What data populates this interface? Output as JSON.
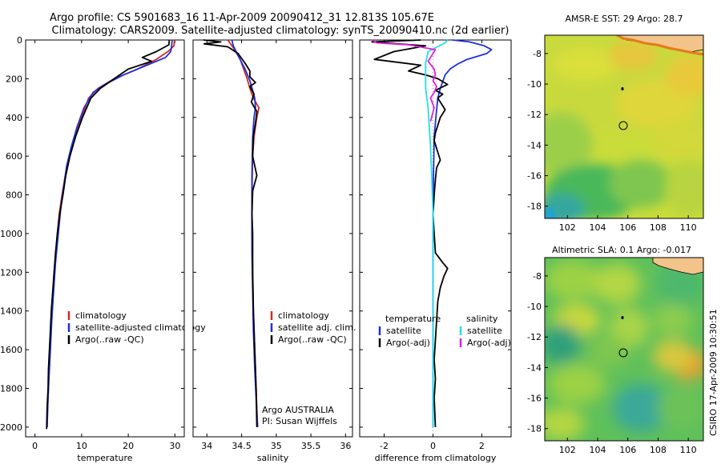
{
  "header": {
    "line1": "Argo profile: CS 5901683_16 11-Apr-2009 20090412_31 12.813S 105.67E",
    "line2": "Climatology: CARS2009. Satellite-adjusted climatology: synTS_20090410.nc (2d earlier)"
  },
  "side_stamp": "CSIRO 17-Apr-2009 10:30:51",
  "colors": {
    "climatology": "#d62a1e",
    "satellite": "#1f2fe0",
    "argo": "#000000",
    "sat_salinity": "#22e0e6",
    "argo_salinity": "#e21ee0"
  },
  "chart_data": [
    {
      "id": "temperature-profile",
      "type": "line",
      "xlabel": "temperature",
      "xlim": [
        -2,
        32
      ],
      "ylim": [
        2050,
        0
      ],
      "xticks": [
        0,
        10,
        20,
        30
      ],
      "yticks": [
        0,
        200,
        400,
        600,
        800,
        1000,
        1200,
        1400,
        1600,
        1800,
        2000
      ],
      "legend": [
        "climatology",
        "satellite-adjusted climatology",
        "Argo(..raw -QC)"
      ],
      "series": [
        {
          "name": "climatology",
          "color": "#d62a1e",
          "points": [
            [
              29.9,
              0
            ],
            [
              29.8,
              30
            ],
            [
              28.5,
              60
            ],
            [
              26,
              100
            ],
            [
              22,
              150
            ],
            [
              17,
              200
            ],
            [
              13.5,
              250
            ],
            [
              11.5,
              300
            ],
            [
              10,
              400
            ],
            [
              8.5,
              500
            ],
            [
              7.3,
              600
            ],
            [
              6.5,
              700
            ],
            [
              5.8,
              800
            ],
            [
              5.2,
              900
            ],
            [
              4.8,
              1000
            ],
            [
              4.5,
              1100
            ],
            [
              4.2,
              1200
            ],
            [
              3.9,
              1300
            ],
            [
              3.6,
              1400
            ],
            [
              3.4,
              1500
            ],
            [
              3.2,
              1600
            ],
            [
              3,
              1700
            ],
            [
              2.9,
              1800
            ],
            [
              2.7,
              1900
            ],
            [
              2.6,
              2000
            ]
          ]
        },
        {
          "name": "satellite-adjusted climatology",
          "color": "#1f2fe0",
          "points": [
            [
              29.4,
              0
            ],
            [
              29.3,
              30
            ],
            [
              29.1,
              60
            ],
            [
              28,
              90
            ],
            [
              24,
              130
            ],
            [
              19,
              180
            ],
            [
              15,
              230
            ],
            [
              12.5,
              270
            ],
            [
              10.5,
              350
            ],
            [
              9,
              450
            ],
            [
              7.8,
              550
            ],
            [
              6.8,
              650
            ],
            [
              6.2,
              750
            ],
            [
              5.6,
              850
            ],
            [
              5,
              1000
            ],
            [
              4.4,
              1150
            ],
            [
              4,
              1300
            ],
            [
              3.6,
              1450
            ],
            [
              3.3,
              1600
            ],
            [
              3,
              1750
            ],
            [
              2.8,
              1850
            ],
            [
              2.6,
              2000
            ]
          ]
        },
        {
          "name": "Argo(..raw -QC)",
          "color": "#000000",
          "points": [
            [
              28.8,
              0
            ],
            [
              28.7,
              25
            ],
            [
              26,
              60
            ],
            [
              23,
              90
            ],
            [
              25,
              110
            ],
            [
              20,
              150
            ],
            [
              17,
              200
            ],
            [
              14,
              250
            ],
            [
              12,
              300
            ],
            [
              10.2,
              400
            ],
            [
              8.7,
              500
            ],
            [
              7.5,
              600
            ],
            [
              6.6,
              700
            ],
            [
              6,
              800
            ],
            [
              5.3,
              900
            ],
            [
              4.8,
              1000
            ],
            [
              4.4,
              1100
            ],
            [
              4.1,
              1200
            ],
            [
              3.8,
              1300
            ],
            [
              3.5,
              1400
            ],
            [
              3.3,
              1500
            ],
            [
              3.1,
              1600
            ],
            [
              2.9,
              1700
            ],
            [
              2.8,
              1800
            ],
            [
              2.6,
              1900
            ],
            [
              2.5,
              2010
            ]
          ]
        }
      ]
    },
    {
      "id": "salinity-profile",
      "type": "line",
      "xlabel": "salinity",
      "xlim": [
        33.8,
        36.1
      ],
      "ylim": [
        2050,
        0
      ],
      "xticks": [
        34,
        34.5,
        35,
        35.5,
        36
      ],
      "xtick_labels": [
        "34",
        "34.5",
        "35",
        "35.5",
        "36"
      ],
      "legend": [
        "climatology",
        "satellite adj. clim.",
        "Argo(..raw -QC)"
      ],
      "annotation": [
        "Argo AUSTRALIA",
        "PI: Susan Wijffels"
      ],
      "series": [
        {
          "name": "climatology",
          "color": "#d62a1e",
          "points": [
            [
              34.3,
              0
            ],
            [
              34.38,
              40
            ],
            [
              34.48,
              100
            ],
            [
              34.58,
              200
            ],
            [
              34.62,
              250
            ],
            [
              34.67,
              300
            ],
            [
              34.75,
              350
            ],
            [
              34.72,
              400
            ],
            [
              34.68,
              500
            ],
            [
              34.66,
              600
            ],
            [
              34.65,
              800
            ],
            [
              34.65,
              1000
            ],
            [
              34.66,
              1200
            ],
            [
              34.67,
              1400
            ],
            [
              34.69,
              1600
            ],
            [
              34.71,
              1800
            ],
            [
              34.73,
              2000
            ]
          ]
        },
        {
          "name": "satellite adj. clim.",
          "color": "#1f2fe0",
          "points": [
            [
              34.36,
              0
            ],
            [
              34.38,
              30
            ],
            [
              34.45,
              80
            ],
            [
              34.55,
              150
            ],
            [
              34.62,
              210
            ],
            [
              34.66,
              260
            ],
            [
              34.69,
              300
            ],
            [
              34.7,
              350
            ],
            [
              34.68,
              400
            ],
            [
              34.66,
              500
            ],
            [
              34.65,
              700
            ],
            [
              34.65,
              900
            ],
            [
              34.65,
              1100
            ],
            [
              34.66,
              1300
            ],
            [
              34.67,
              1500
            ],
            [
              34.69,
              1700
            ],
            [
              34.71,
              1850
            ],
            [
              34.73,
              2000
            ]
          ]
        },
        {
          "name": "Argo(..raw -QC)",
          "color": "#000000",
          "points": [
            [
              33.95,
              0
            ],
            [
              34.2,
              10
            ],
            [
              33.96,
              20
            ],
            [
              34.3,
              35
            ],
            [
              34.45,
              70
            ],
            [
              34.55,
              120
            ],
            [
              34.62,
              160
            ],
            [
              34.62,
              190
            ],
            [
              34.7,
              220
            ],
            [
              34.62,
              240
            ],
            [
              34.68,
              280
            ],
            [
              34.64,
              320
            ],
            [
              34.72,
              370
            ],
            [
              34.7,
              430
            ],
            [
              34.67,
              500
            ],
            [
              34.66,
              600
            ],
            [
              34.72,
              700
            ],
            [
              34.66,
              780
            ],
            [
              34.65,
              900
            ],
            [
              34.66,
              1000
            ],
            [
              34.66,
              1200
            ],
            [
              34.67,
              1400
            ],
            [
              34.69,
              1600
            ],
            [
              34.71,
              1800
            ],
            [
              34.72,
              2000
            ]
          ]
        }
      ]
    },
    {
      "id": "difference-profile",
      "type": "line",
      "xlabel": "difference from climatology",
      "xlim": [
        -3,
        3.2
      ],
      "ylim": [
        2050,
        0
      ],
      "xticks": [
        -2,
        0,
        2
      ],
      "legend_left_title": "temperature",
      "legend_right_title": "salinity",
      "legend_left": [
        "satellite",
        "Argo(-adj)"
      ],
      "legend_right": [
        "satellite",
        "Argo(-adj)"
      ],
      "series": [
        {
          "name": "satellite",
          "color": "#1f2fe0",
          "points": [
            [
              0.8,
              0
            ],
            [
              1.5,
              10
            ],
            [
              1.8,
              20
            ],
            [
              2.1,
              30
            ],
            [
              2.4,
              50
            ],
            [
              2.2,
              70
            ],
            [
              1.8,
              85
            ],
            [
              1.4,
              100
            ],
            [
              1,
              125
            ],
            [
              0.7,
              150
            ],
            [
              0.5,
              180
            ],
            [
              0.3,
              250
            ],
            [
              0.2,
              300
            ],
            [
              0.12,
              400
            ],
            [
              0.05,
              500
            ],
            [
              0.02,
              700
            ],
            [
              0,
              900
            ],
            [
              0,
              1200
            ],
            [
              0,
              1600
            ],
            [
              0,
              2000
            ]
          ]
        },
        {
          "name": "Argo(-adj)",
          "color": "#000000",
          "points": [
            [
              -0.5,
              0
            ],
            [
              -2.5,
              10
            ],
            [
              -0.3,
              30
            ],
            [
              -1.6,
              60
            ],
            [
              -2.4,
              100
            ],
            [
              -0.5,
              130
            ],
            [
              -1,
              160
            ],
            [
              -0.3,
              180
            ],
            [
              0.2,
              200
            ],
            [
              0.6,
              230
            ],
            [
              0.1,
              260
            ],
            [
              0.4,
              280
            ],
            [
              0.2,
              300
            ],
            [
              0.5,
              360
            ],
            [
              0.3,
              400
            ],
            [
              0.1,
              480
            ],
            [
              0.05,
              520
            ],
            [
              0.15,
              560
            ],
            [
              0.3,
              620
            ],
            [
              0.15,
              660
            ],
            [
              0.1,
              720
            ],
            [
              0.05,
              800
            ],
            [
              0,
              900
            ],
            [
              0.05,
              1000
            ],
            [
              0.1,
              1100
            ],
            [
              0.4,
              1150
            ],
            [
              0.6,
              1180
            ],
            [
              0.45,
              1220
            ],
            [
              0.3,
              1280
            ],
            [
              0.2,
              1350
            ],
            [
              0.15,
              1450
            ],
            [
              0.1,
              1550
            ],
            [
              0.05,
              1650
            ],
            [
              0.1,
              1750
            ],
            [
              0.05,
              1850
            ],
            [
              0.1,
              2000
            ]
          ]
        },
        {
          "name": "satellite salinity",
          "color": "#22e0e6",
          "points": [
            [
              0.6,
              0
            ],
            [
              0.5,
              15
            ],
            [
              0.25,
              30
            ],
            [
              -0.2,
              60
            ],
            [
              -0.3,
              120
            ],
            [
              -0.3,
              250
            ],
            [
              -0.2,
              350
            ],
            [
              -0.15,
              450
            ],
            [
              -0.1,
              550
            ],
            [
              -0.05,
              700
            ],
            [
              0,
              900
            ],
            [
              0,
              1200
            ],
            [
              0,
              1600
            ],
            [
              0,
              2000
            ]
          ]
        },
        {
          "name": "Argo(-adj) salinity",
          "color": "#e21ee0",
          "points": [
            [
              -2.5,
              0
            ],
            [
              -2.3,
              15
            ],
            [
              -1,
              25
            ],
            [
              0.1,
              50
            ],
            [
              -0.2,
              110
            ],
            [
              0.05,
              150
            ],
            [
              0.1,
              180
            ],
            [
              0,
              210
            ],
            [
              0.15,
              240
            ],
            [
              0.05,
              270
            ],
            [
              -0.1,
              300
            ],
            [
              0.05,
              350
            ],
            [
              -0.1,
              420
            ]
          ]
        }
      ]
    },
    {
      "id": "amsr-sst-map",
      "type": "heatmap",
      "title": "AMSR-E SST: 29 Argo: 28.7",
      "xlim": [
        100.5,
        111
      ],
      "ylim": [
        -18.8,
        -6.8
      ],
      "xticks": [
        102,
        104,
        106,
        108,
        110
      ],
      "yticks": [
        -8,
        -10,
        -12,
        -14,
        -16,
        -18
      ],
      "marker": [
        105.67,
        -12.813
      ]
    },
    {
      "id": "altimetric-sla-map",
      "type": "heatmap",
      "title": "Altimetric SLA: 0.1 Argo: -0.017",
      "xlim": [
        100.5,
        111
      ],
      "ylim": [
        -18.8,
        -6.8
      ],
      "xticks": [
        102,
        104,
        106,
        108,
        110
      ],
      "yticks": [
        -8,
        -10,
        -12,
        -14,
        -16,
        -18
      ],
      "marker": [
        105.67,
        -12.813
      ]
    }
  ]
}
